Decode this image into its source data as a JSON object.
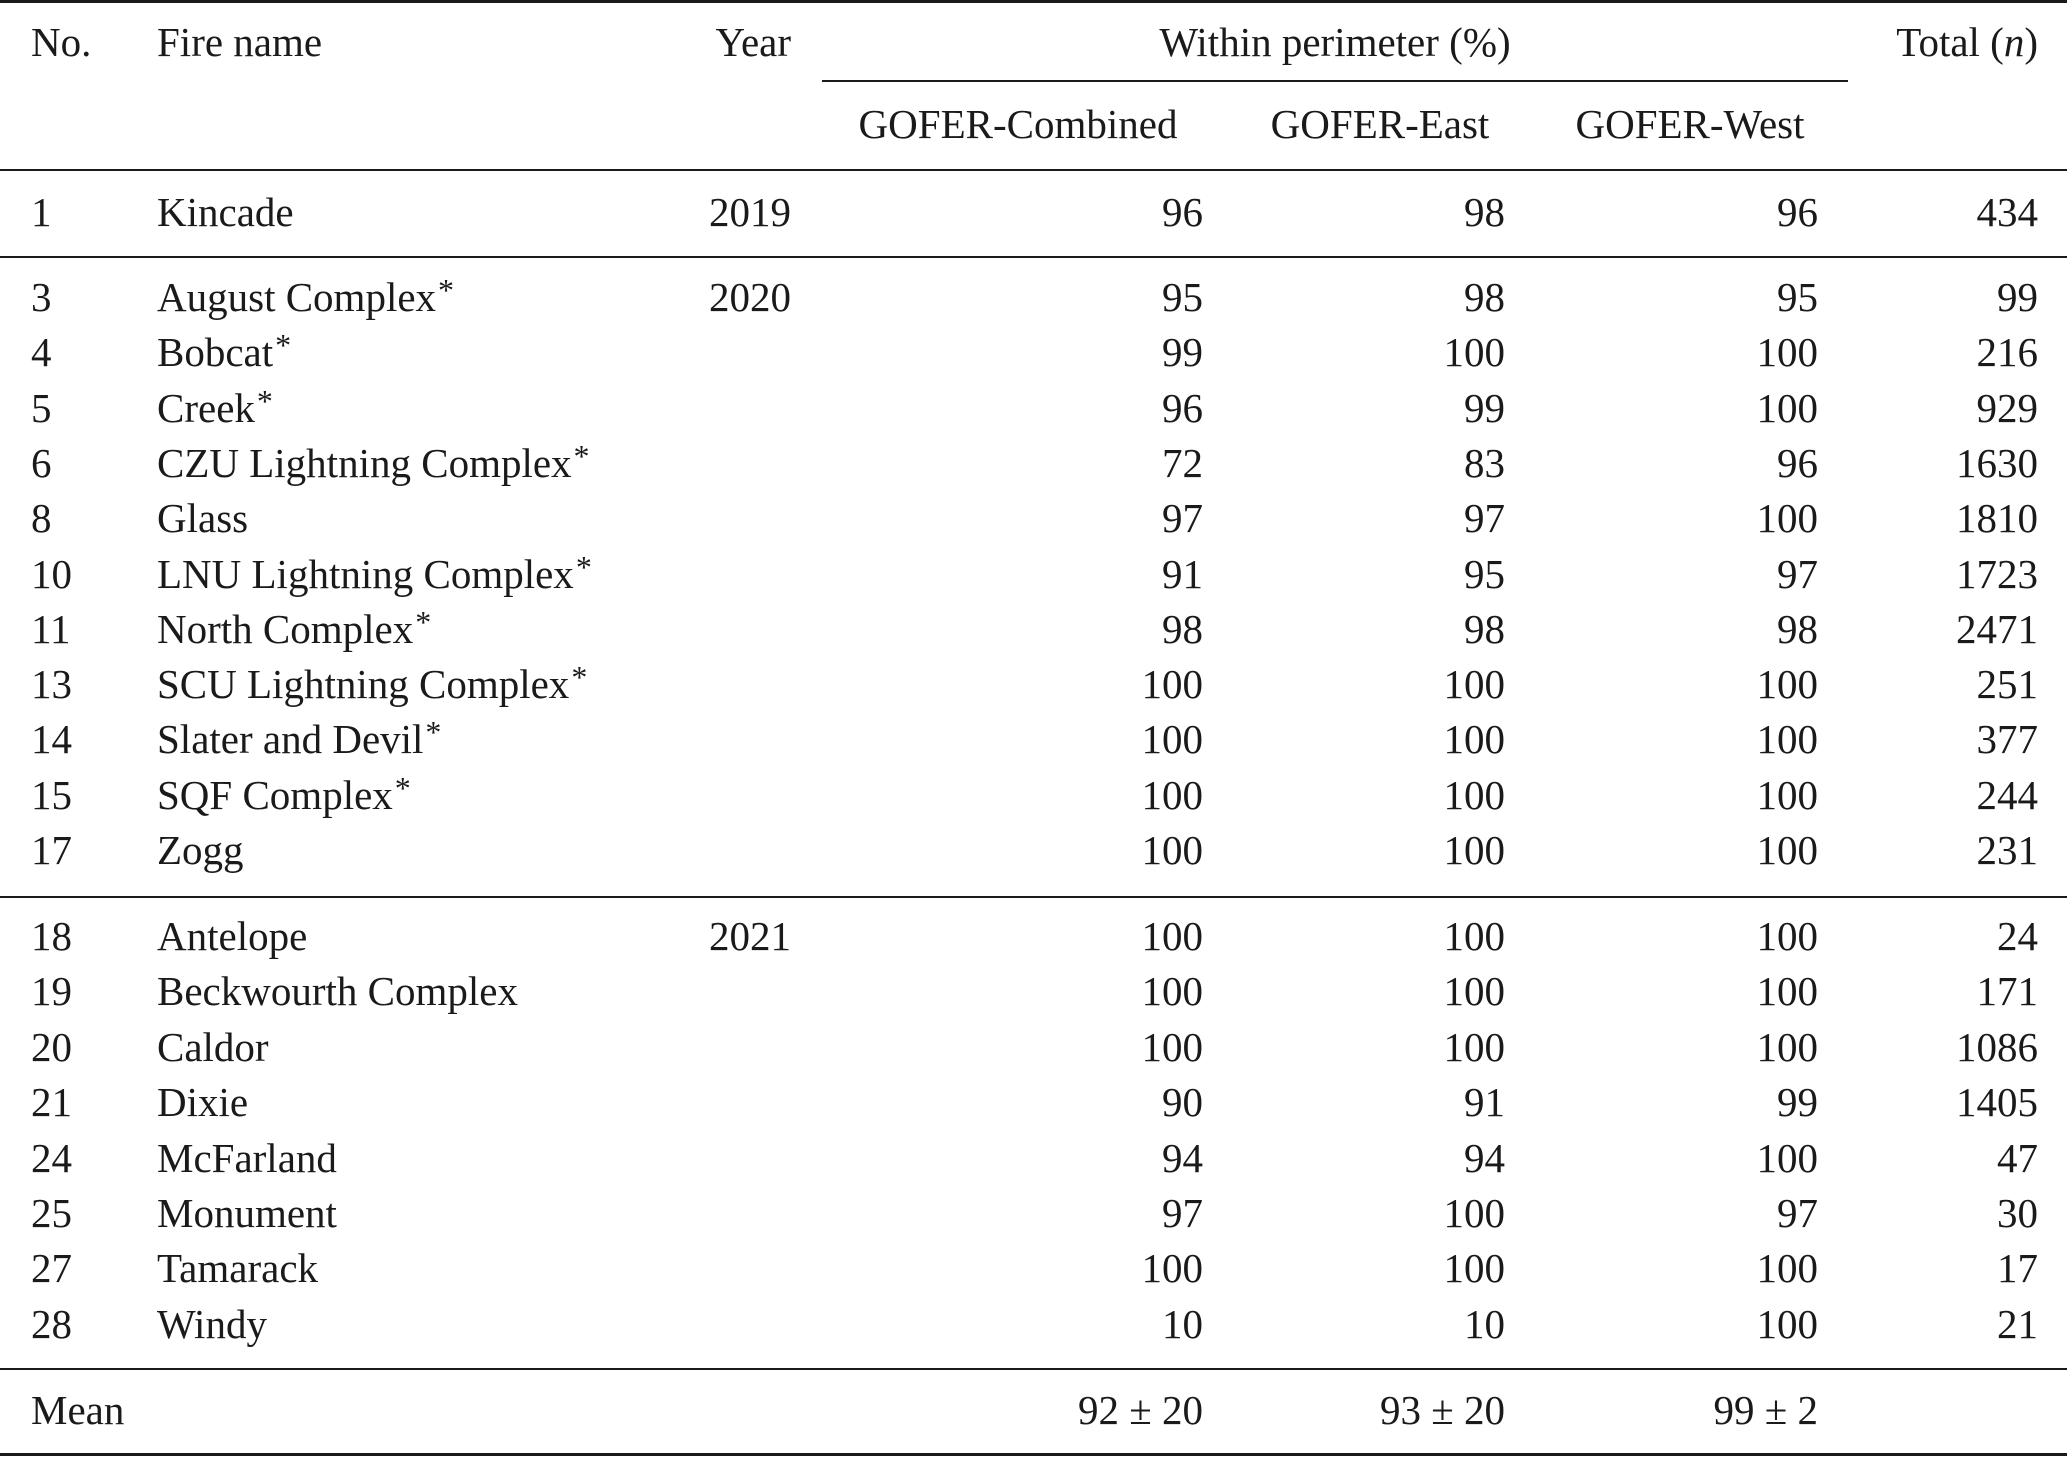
{
  "header": {
    "no": "No.",
    "fire_name": "Fire name",
    "year": "Year",
    "group": "Within perimeter (%)",
    "total_prefix": "Total (",
    "total_n": "n",
    "total_suffix": ")",
    "combined": "GOFER-Combined",
    "east": "GOFER-East",
    "west": "GOFER-West"
  },
  "rows": [
    {
      "no": "1",
      "name": "Kincade",
      "star": false,
      "year": "2019",
      "combined": "96",
      "east": "98",
      "west": "96",
      "total": "434"
    },
    {
      "no": "3",
      "name": "August Complex",
      "star": true,
      "year": "2020",
      "combined": "95",
      "east": "98",
      "west": "95",
      "total": "99"
    },
    {
      "no": "4",
      "name": "Bobcat",
      "star": true,
      "year": "",
      "combined": "99",
      "east": "100",
      "west": "100",
      "total": "216"
    },
    {
      "no": "5",
      "name": "Creek",
      "star": true,
      "year": "",
      "combined": "96",
      "east": "99",
      "west": "100",
      "total": "929"
    },
    {
      "no": "6",
      "name": "CZU Lightning Complex",
      "star": true,
      "year": "",
      "combined": "72",
      "east": "83",
      "west": "96",
      "total": "1630"
    },
    {
      "no": "8",
      "name": "Glass",
      "star": false,
      "year": "",
      "combined": "97",
      "east": "97",
      "west": "100",
      "total": "1810"
    },
    {
      "no": "10",
      "name": "LNU Lightning Complex",
      "star": true,
      "year": "",
      "combined": "91",
      "east": "95",
      "west": "97",
      "total": "1723"
    },
    {
      "no": "11",
      "name": "North Complex",
      "star": true,
      "year": "",
      "combined": "98",
      "east": "98",
      "west": "98",
      "total": "2471"
    },
    {
      "no": "13",
      "name": "SCU Lightning Complex",
      "star": true,
      "year": "",
      "combined": "100",
      "east": "100",
      "west": "100",
      "total": "251"
    },
    {
      "no": "14",
      "name": "Slater and Devil",
      "star": true,
      "year": "",
      "combined": "100",
      "east": "100",
      "west": "100",
      "total": "377"
    },
    {
      "no": "15",
      "name": "SQF Complex",
      "star": true,
      "year": "",
      "combined": "100",
      "east": "100",
      "west": "100",
      "total": "244"
    },
    {
      "no": "17",
      "name": "Zogg",
      "star": false,
      "year": "",
      "combined": "100",
      "east": "100",
      "west": "100",
      "total": "231"
    },
    {
      "no": "18",
      "name": "Antelope",
      "star": false,
      "year": "2021",
      "combined": "100",
      "east": "100",
      "west": "100",
      "total": "24"
    },
    {
      "no": "19",
      "name": "Beckwourth Complex",
      "star": false,
      "year": "",
      "combined": "100",
      "east": "100",
      "west": "100",
      "total": "171"
    },
    {
      "no": "20",
      "name": "Caldor",
      "star": false,
      "year": "",
      "combined": "100",
      "east": "100",
      "west": "100",
      "total": "1086"
    },
    {
      "no": "21",
      "name": "Dixie",
      "star": false,
      "year": "",
      "combined": "90",
      "east": "91",
      "west": "99",
      "total": "1405"
    },
    {
      "no": "24",
      "name": "McFarland",
      "star": false,
      "year": "",
      "combined": "94",
      "east": "94",
      "west": "100",
      "total": "47"
    },
    {
      "no": "25",
      "name": "Monument",
      "star": false,
      "year": "",
      "combined": "97",
      "east": "100",
      "west": "97",
      "total": "30"
    },
    {
      "no": "27",
      "name": "Tamarack",
      "star": false,
      "year": "",
      "combined": "100",
      "east": "100",
      "west": "100",
      "total": "17"
    },
    {
      "no": "28",
      "name": "Windy",
      "star": false,
      "year": "",
      "combined": "10",
      "east": "10",
      "west": "100",
      "total": "21"
    }
  ],
  "mean": {
    "label": "Mean",
    "combined": "92 ± 20",
    "east": "93 ± 20",
    "west": "99 ± 2"
  },
  "footnote_marker": "*"
}
